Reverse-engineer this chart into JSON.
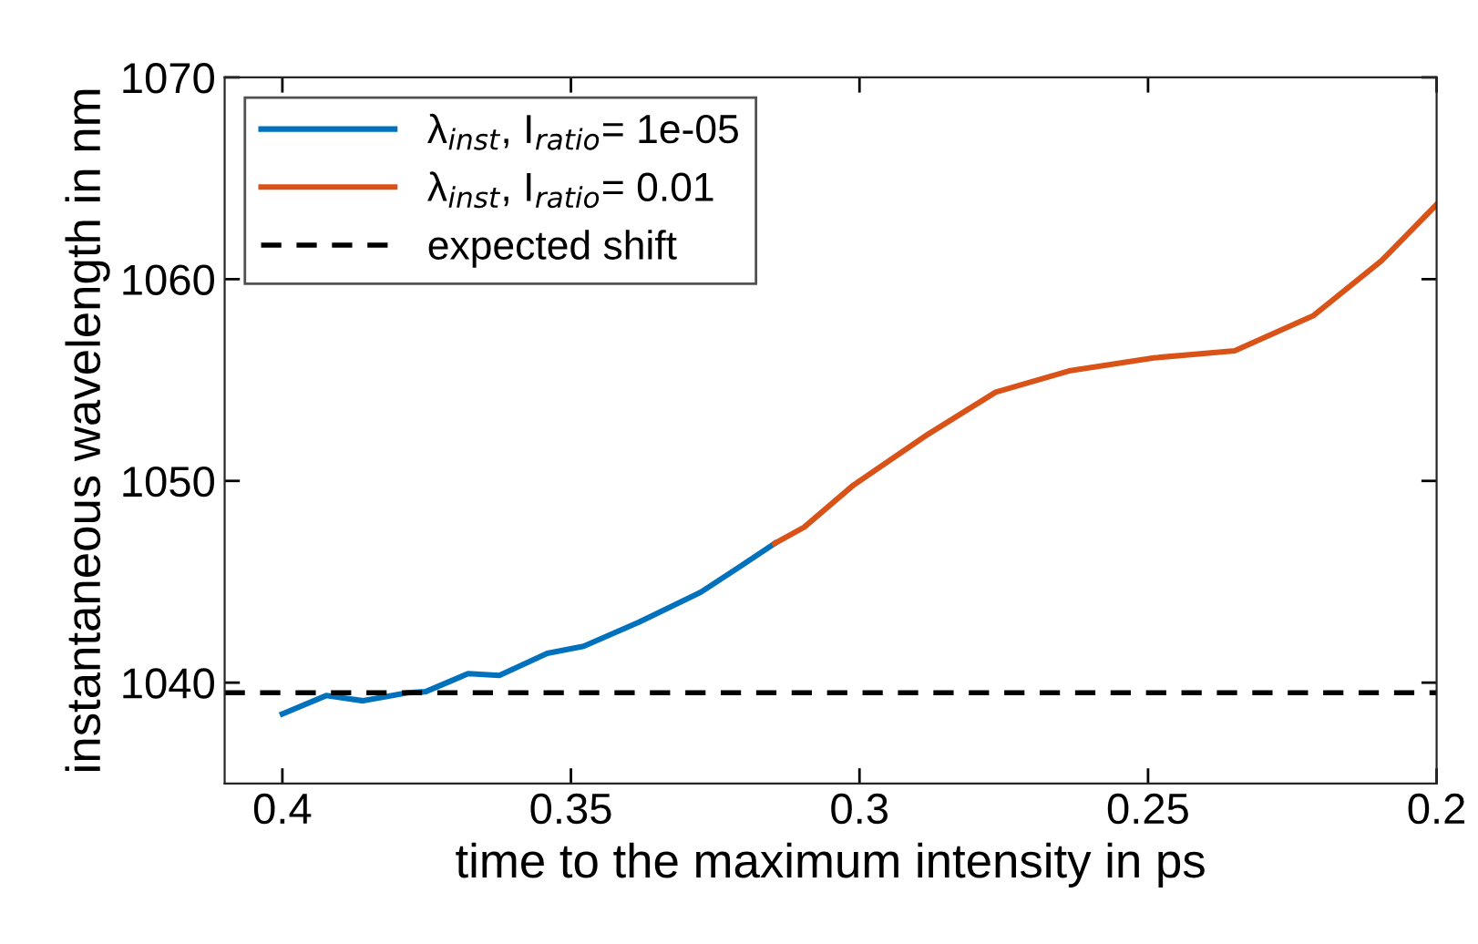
{
  "chart_data": {
    "type": "line",
    "xlabel": "time to the maximum intensity in ps",
    "ylabel": "instantaneous wavelength in nm",
    "xlim": [
      0.41,
      0.2
    ],
    "xticks": [
      0.4,
      0.35,
      0.3,
      0.25,
      0.2
    ],
    "ylim": [
      1035,
      1070
    ],
    "yticks": [
      1040,
      1050,
      1060,
      1070
    ],
    "grid": false,
    "legend": "top left",
    "line_style": "solid",
    "series": [
      {
        "name": "λ$_{inst}$, I$_{ratio}$= 1e-05",
        "color": "#0072bd",
        "x": [
          0.4,
          0.3924,
          0.386,
          0.3783,
          0.3752,
          0.3678,
          0.3624,
          0.3541,
          0.3478,
          0.3382,
          0.3274,
          0.321,
          0.3147
        ],
        "values": [
          1038.45,
          1039.36,
          1039.1,
          1039.5,
          1039.55,
          1040.45,
          1040.36,
          1041.45,
          1041.8,
          1043,
          1044.5,
          1045.7,
          1046.9
        ]
      },
      {
        "name": "λ$_{inst}$, I$_{ratio}$= 0.01",
        "color": "#d95319",
        "x": [
          0.3147,
          0.3096,
          0.301,
          0.2882,
          0.2764,
          0.2637,
          0.249,
          0.235,
          0.2213,
          0.2096,
          0.2
        ],
        "values": [
          1046.9,
          1047.7,
          1049.8,
          1052.3,
          1054.4,
          1055.45,
          1056.1,
          1056.45,
          1058.2,
          1060.9,
          1063.7
        ]
      }
    ],
    "ref_lines": [
      {
        "axis": "y",
        "value": 1039.5,
        "label": "expected shift",
        "color": "#000000",
        "line_style": "dashed"
      }
    ]
  }
}
